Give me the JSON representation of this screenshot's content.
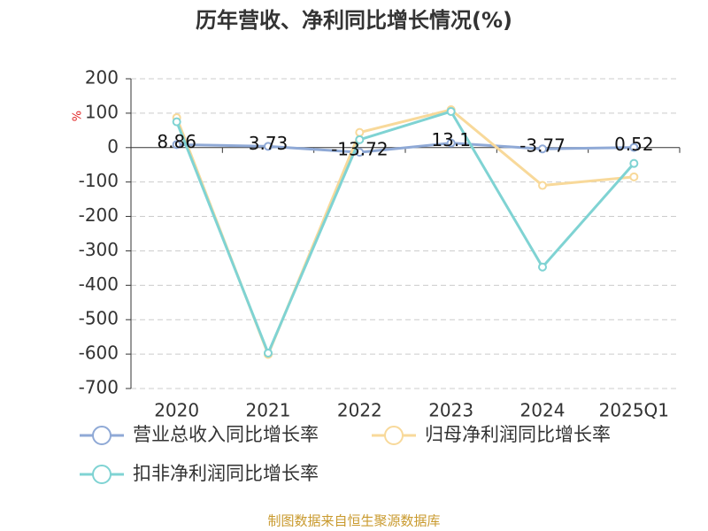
{
  "chart_data": {
    "type": "line",
    "title": "历年营收、净利同比增长情况(%)",
    "y_label": "%",
    "categories": [
      "2020",
      "2021",
      "2022",
      "2023",
      "2024",
      "2025Q1"
    ],
    "series": [
      {
        "name": "营业总收入同比增长率",
        "color": "#8fa9d6",
        "values": [
          8.86,
          3.73,
          -13.72,
          13.1,
          -3.77,
          0.52
        ],
        "show_labels": true
      },
      {
        "name": "归母净利润同比增长率",
        "color": "#f8d99a",
        "values": [
          87,
          -601,
          44,
          110,
          -110,
          -85
        ]
      },
      {
        "name": "扣非净利润同比增长率",
        "color": "#7fd3d3",
        "values": [
          75,
          -597,
          23,
          105,
          -347,
          -46
        ]
      }
    ],
    "ylim": [
      -700,
      200
    ],
    "yticks": [
      -700,
      -600,
      -500,
      -400,
      -300,
      -200,
      -100,
      0,
      100,
      200
    ],
    "grid": true,
    "source": "制图数据来自恒生聚源数据库"
  }
}
